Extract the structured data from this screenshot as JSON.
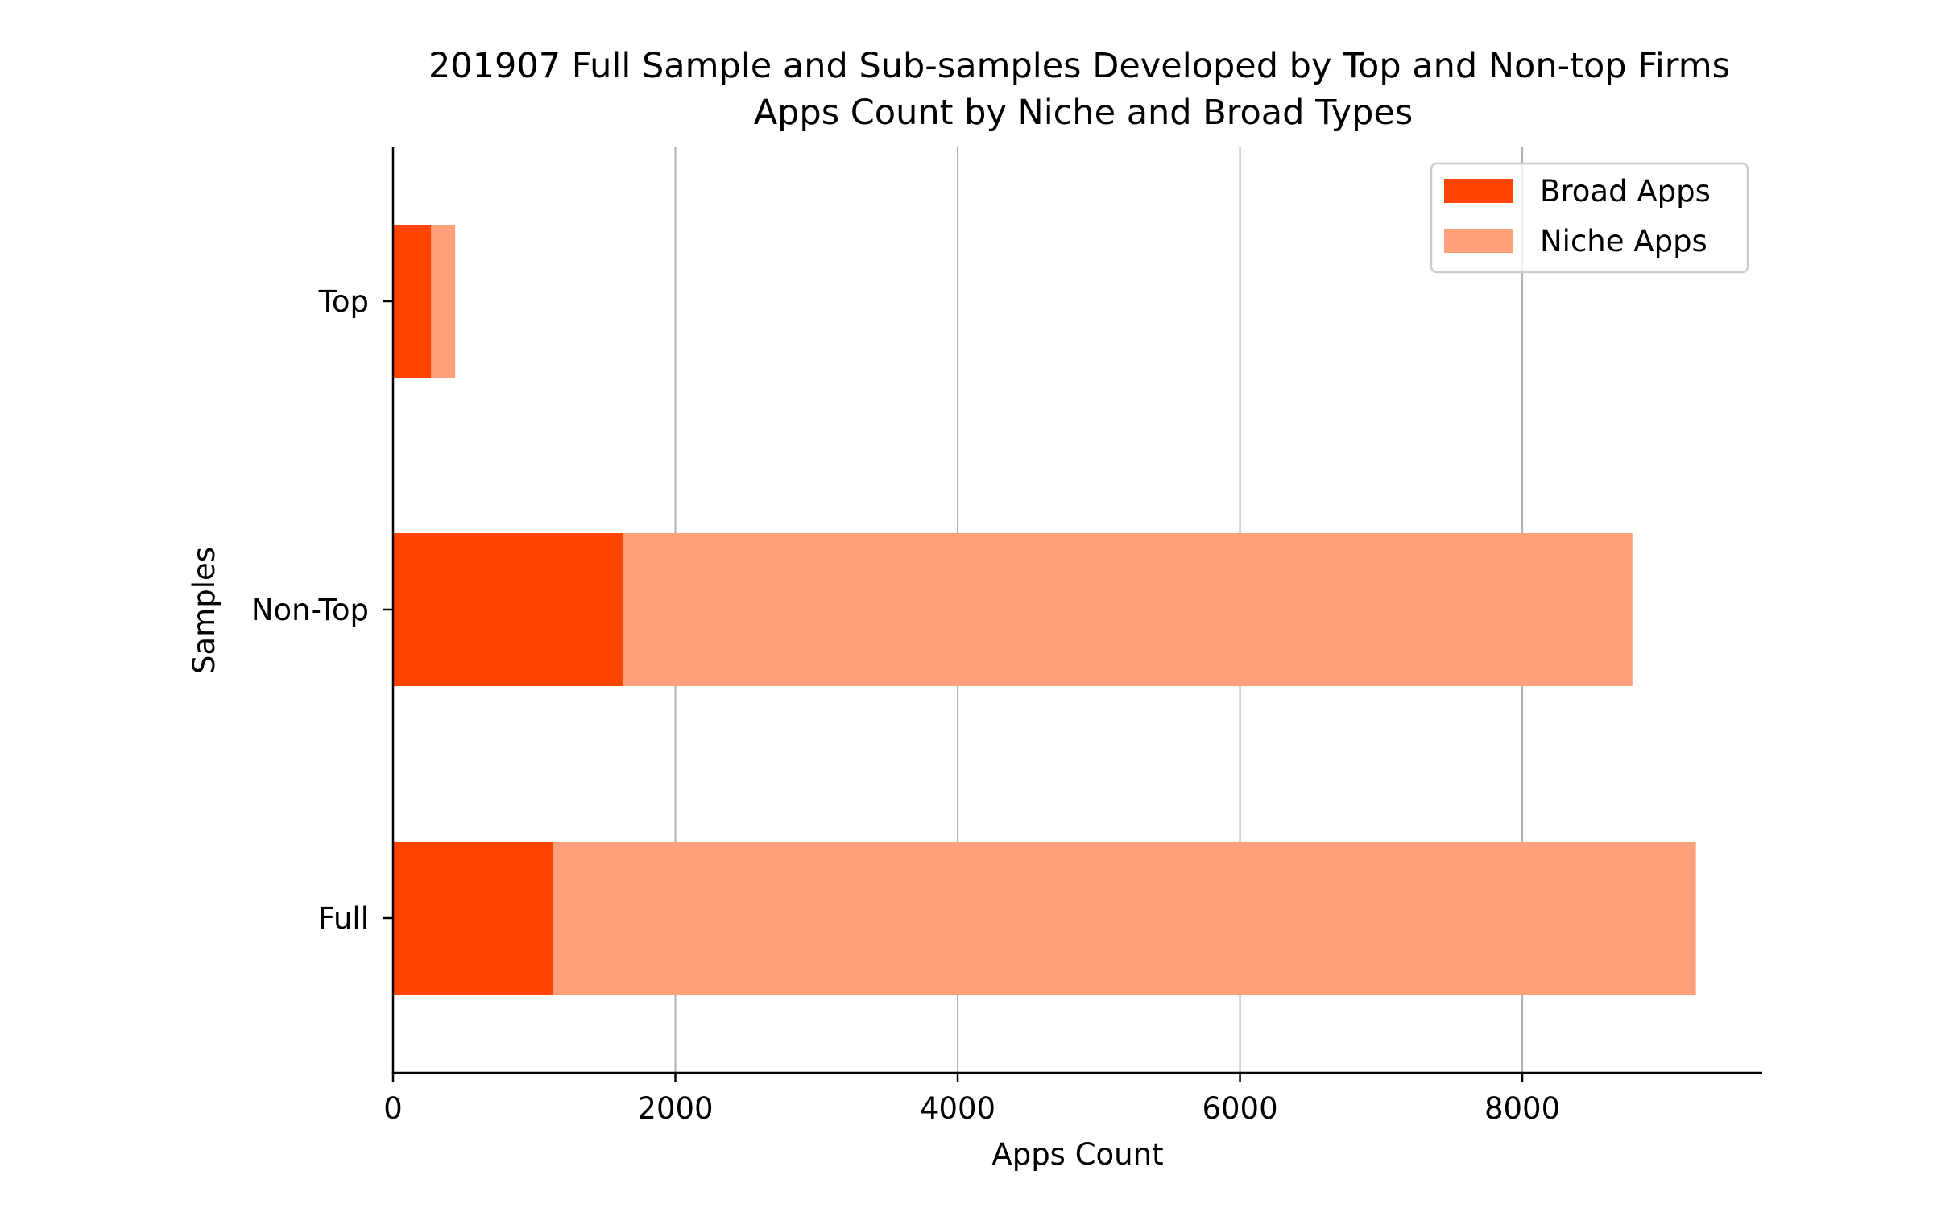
{
  "chart_data": {
    "type": "bar",
    "orientation": "horizontal",
    "stacked": true,
    "title": "201907 Full Sample and Sub-samples Developed by Top and Non-top Firms",
    "subtitle": "Apps Count by Niche and Broad Types",
    "xlabel": "Apps Count",
    "ylabel": "Samples",
    "categories": [
      "Full",
      "Non-Top",
      "Top"
    ],
    "series": [
      {
        "name": "Broad Apps",
        "color": "#ff4500",
        "values": [
          1130,
          1630,
          270
        ]
      },
      {
        "name": "Niche Apps",
        "color": "#ffa07a",
        "values": [
          8100,
          7150,
          170
        ]
      }
    ],
    "xlim": [
      0,
      9700
    ],
    "x_ticks": [
      0,
      2000,
      4000,
      6000,
      8000
    ],
    "x_tick_labels": [
      "0",
      "2000",
      "4000",
      "6000",
      "8000"
    ],
    "grid": "vertical",
    "legend_position": "top-right"
  }
}
